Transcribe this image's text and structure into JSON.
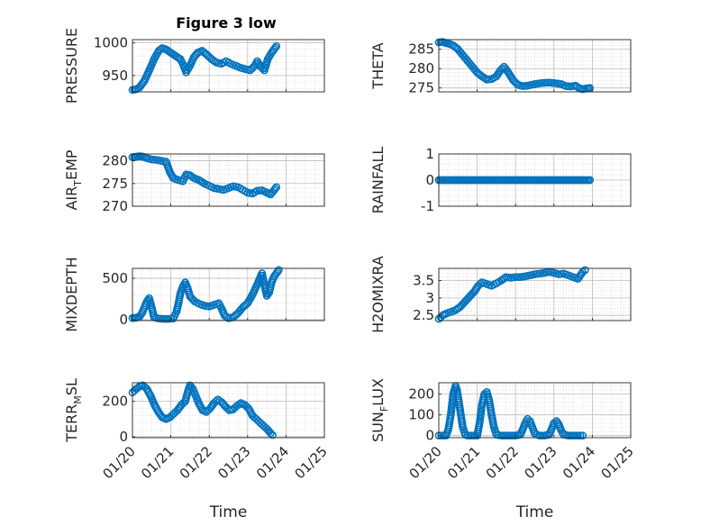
{
  "figure_title": "Figure 3 low",
  "colors": {
    "marker": "#0072BD",
    "axes": "#262626",
    "grid": "#bdbdbd"
  },
  "chart_data": [
    {
      "type": "scatter",
      "ylabel": "PRESSURE",
      "ylabel_parts": [
        "PRESSURE"
      ],
      "xlim": [
        0,
        4
      ],
      "ylim": [
        925,
        1005
      ],
      "yticks": [
        950,
        1000
      ],
      "x_tick_labels_visible": false,
      "grid": true,
      "points": [
        [
          0,
          928
        ],
        [
          0.08,
          929
        ],
        [
          0.15,
          932
        ],
        [
          0.25,
          942
        ],
        [
          0.35,
          958
        ],
        [
          0.45,
          975
        ],
        [
          0.55,
          988
        ],
        [
          0.62,
          992
        ],
        [
          0.7,
          990
        ],
        [
          0.8,
          985
        ],
        [
          0.9,
          980
        ],
        [
          1.0,
          975
        ],
        [
          1.05,
          968
        ],
        [
          1.12,
          955
        ],
        [
          1.2,
          965
        ],
        [
          1.28,
          978
        ],
        [
          1.36,
          985
        ],
        [
          1.45,
          988
        ],
        [
          1.55,
          982
        ],
        [
          1.65,
          975
        ],
        [
          1.75,
          970
        ],
        [
          1.85,
          968
        ],
        [
          1.95,
          972
        ],
        [
          2.05,
          968
        ],
        [
          2.15,
          965
        ],
        [
          2.25,
          962
        ],
        [
          2.35,
          960
        ],
        [
          2.45,
          958
        ],
        [
          2.55,
          965
        ],
        [
          2.6,
          972
        ],
        [
          2.68,
          963
        ],
        [
          2.75,
          958
        ],
        [
          2.82,
          975
        ],
        [
          2.9,
          985
        ],
        [
          2.95,
          990
        ],
        [
          3.0,
          995
        ]
      ]
    },
    {
      "type": "scatter",
      "ylabel": "THETA",
      "ylabel_parts": [
        "THETA"
      ],
      "xlim": [
        0,
        4
      ],
      "ylim": [
        274,
        287.5
      ],
      "yticks": [
        275,
        280,
        285
      ],
      "x_tick_labels_visible": false,
      "grid": true,
      "points": [
        [
          0,
          286.8
        ],
        [
          0.08,
          286.9
        ],
        [
          0.15,
          286.6
        ],
        [
          0.22,
          286.4
        ],
        [
          0.3,
          286
        ],
        [
          0.4,
          285
        ],
        [
          0.5,
          283.5
        ],
        [
          0.6,
          282
        ],
        [
          0.7,
          280.5
        ],
        [
          0.8,
          279
        ],
        [
          0.9,
          278
        ],
        [
          1.0,
          277.2
        ],
        [
          1.1,
          277.3
        ],
        [
          1.2,
          278
        ],
        [
          1.28,
          279.5
        ],
        [
          1.36,
          280.5
        ],
        [
          1.45,
          279
        ],
        [
          1.55,
          277
        ],
        [
          1.65,
          275.8
        ],
        [
          1.75,
          275.5
        ],
        [
          1.85,
          275.6
        ],
        [
          2.0,
          276
        ],
        [
          2.15,
          276.3
        ],
        [
          2.3,
          276.4
        ],
        [
          2.45,
          276.2
        ],
        [
          2.55,
          276
        ],
        [
          2.65,
          275.5
        ],
        [
          2.75,
          275.4
        ],
        [
          2.85,
          275.6
        ],
        [
          2.92,
          275
        ],
        [
          3.0,
          274.7
        ],
        [
          3.08,
          274.9
        ],
        [
          3.15,
          275
        ]
      ]
    },
    {
      "type": "scatter",
      "ylabel": "AIR_TEMP",
      "ylabel_parts": [
        "AIR",
        "T",
        "EMP"
      ],
      "xlim": [
        0,
        4
      ],
      "ylim": [
        270,
        281.5
      ],
      "yticks": [
        270,
        275,
        280
      ],
      "x_tick_labels_visible": false,
      "grid": true,
      "points": [
        [
          0,
          280.8
        ],
        [
          0.08,
          280.9
        ],
        [
          0.15,
          281
        ],
        [
          0.22,
          280.9
        ],
        [
          0.3,
          280.6
        ],
        [
          0.4,
          280.3
        ],
        [
          0.5,
          280.2
        ],
        [
          0.6,
          280
        ],
        [
          0.7,
          279.8
        ],
        [
          0.78,
          277.5
        ],
        [
          0.85,
          276.2
        ],
        [
          0.95,
          275.8
        ],
        [
          1.05,
          275.5
        ],
        [
          1.12,
          277
        ],
        [
          1.2,
          276.8
        ],
        [
          1.28,
          276.2
        ],
        [
          1.38,
          275.8
        ],
        [
          1.5,
          275
        ],
        [
          1.6,
          274.5
        ],
        [
          1.7,
          274
        ],
        [
          1.8,
          273.8
        ],
        [
          1.9,
          273.6
        ],
        [
          2.0,
          274
        ],
        [
          2.1,
          274.4
        ],
        [
          2.2,
          274.2
        ],
        [
          2.3,
          273.6
        ],
        [
          2.4,
          273
        ],
        [
          2.5,
          272.8
        ],
        [
          2.6,
          273.4
        ],
        [
          2.7,
          273.5
        ],
        [
          2.8,
          273
        ],
        [
          2.88,
          272.6
        ],
        [
          2.95,
          273.5
        ],
        [
          3.0,
          274.2
        ]
      ]
    },
    {
      "type": "scatter",
      "ylabel": "RAINFALL",
      "ylabel_parts": [
        "RAINFALL"
      ],
      "xlim": [
        0,
        4
      ],
      "ylim": [
        -1,
        1
      ],
      "yticks": [
        -1,
        0,
        1
      ],
      "x_tick_labels_visible": false,
      "grid": true,
      "points": [
        [
          0,
          0
        ],
        [
          3.15,
          0
        ]
      ],
      "constant_series": {
        "x_start": 0,
        "x_end": 3.15,
        "y": 0
      }
    },
    {
      "type": "scatter",
      "ylabel": "MIXDEPTH",
      "ylabel_parts": [
        "MIXDEPTH"
      ],
      "xlim": [
        0,
        4
      ],
      "ylim": [
        -10,
        620
      ],
      "yticks": [
        0,
        500
      ],
      "x_tick_labels_visible": false,
      "grid": true,
      "points": [
        [
          0,
          20
        ],
        [
          0.08,
          25
        ],
        [
          0.15,
          40
        ],
        [
          0.2,
          80
        ],
        [
          0.25,
          150
        ],
        [
          0.3,
          220
        ],
        [
          0.35,
          260
        ],
        [
          0.4,
          150
        ],
        [
          0.45,
          30
        ],
        [
          0.55,
          15
        ],
        [
          0.65,
          10
        ],
        [
          0.75,
          10
        ],
        [
          0.85,
          15
        ],
        [
          0.92,
          100
        ],
        [
          0.96,
          200
        ],
        [
          1.0,
          320
        ],
        [
          1.05,
          400
        ],
        [
          1.1,
          450
        ],
        [
          1.15,
          380
        ],
        [
          1.2,
          280
        ],
        [
          1.3,
          220
        ],
        [
          1.4,
          190
        ],
        [
          1.5,
          170
        ],
        [
          1.6,
          160
        ],
        [
          1.7,
          180
        ],
        [
          1.8,
          200
        ],
        [
          1.87,
          120
        ],
        [
          1.92,
          50
        ],
        [
          2.0,
          20
        ],
        [
          2.1,
          30
        ],
        [
          2.2,
          80
        ],
        [
          2.3,
          150
        ],
        [
          2.4,
          200
        ],
        [
          2.5,
          300
        ],
        [
          2.58,
          400
        ],
        [
          2.64,
          480
        ],
        [
          2.7,
          560
        ],
        [
          2.75,
          420
        ],
        [
          2.8,
          290
        ],
        [
          2.85,
          330
        ],
        [
          2.9,
          450
        ],
        [
          2.95,
          520
        ],
        [
          3.0,
          560
        ],
        [
          3.05,
          600
        ]
      ]
    },
    {
      "type": "scatter",
      "ylabel": "H2OMIXRA",
      "ylabel_parts": [
        "H2OMIXRA"
      ],
      "xlim": [
        0,
        4
      ],
      "ylim": [
        2.35,
        3.85
      ],
      "yticks": [
        2.5,
        3,
        3.5
      ],
      "x_tick_labels_visible": false,
      "grid": true,
      "points": [
        [
          0,
          2.4
        ],
        [
          0.08,
          2.5
        ],
        [
          0.15,
          2.55
        ],
        [
          0.25,
          2.6
        ],
        [
          0.35,
          2.65
        ],
        [
          0.45,
          2.75
        ],
        [
          0.55,
          2.9
        ],
        [
          0.65,
          3.05
        ],
        [
          0.75,
          3.2
        ],
        [
          0.82,
          3.35
        ],
        [
          0.9,
          3.45
        ],
        [
          1.0,
          3.4
        ],
        [
          1.1,
          3.35
        ],
        [
          1.2,
          3.42
        ],
        [
          1.3,
          3.5
        ],
        [
          1.4,
          3.6
        ],
        [
          1.5,
          3.58
        ],
        [
          1.6,
          3.6
        ],
        [
          1.7,
          3.6
        ],
        [
          1.8,
          3.62
        ],
        [
          1.9,
          3.65
        ],
        [
          2.0,
          3.68
        ],
        [
          2.1,
          3.7
        ],
        [
          2.2,
          3.72
        ],
        [
          2.3,
          3.75
        ],
        [
          2.4,
          3.72
        ],
        [
          2.5,
          3.68
        ],
        [
          2.6,
          3.7
        ],
        [
          2.7,
          3.65
        ],
        [
          2.8,
          3.6
        ],
        [
          2.9,
          3.55
        ],
        [
          2.95,
          3.65
        ],
        [
          3.0,
          3.75
        ],
        [
          3.05,
          3.8
        ]
      ]
    },
    {
      "type": "scatter",
      "ylabel": "TERR_MSL",
      "ylabel_parts": [
        "TERR",
        "M",
        "SL"
      ],
      "xlim": [
        0,
        4
      ],
      "ylim": [
        -5,
        305
      ],
      "yticks": [
        0,
        200
      ],
      "x_tick_labels": [
        "01/20",
        "01/21",
        "01/22",
        "01/23",
        "01/24",
        "01/25"
      ],
      "x_tick_values": [
        0,
        0.8,
        1.6,
        2.4,
        3.2,
        4.0
      ],
      "x_tick_labels_visible": true,
      "xlabel": "Time",
      "grid": true,
      "points": [
        [
          0,
          250
        ],
        [
          0.08,
          270
        ],
        [
          0.15,
          285
        ],
        [
          0.22,
          290
        ],
        [
          0.3,
          270
        ],
        [
          0.38,
          230
        ],
        [
          0.46,
          180
        ],
        [
          0.54,
          140
        ],
        [
          0.62,
          110
        ],
        [
          0.7,
          100
        ],
        [
          0.78,
          110
        ],
        [
          0.86,
          130
        ],
        [
          0.94,
          150
        ],
        [
          1.02,
          180
        ],
        [
          1.1,
          200
        ],
        [
          1.16,
          260
        ],
        [
          1.2,
          290
        ],
        [
          1.26,
          270
        ],
        [
          1.32,
          230
        ],
        [
          1.38,
          190
        ],
        [
          1.46,
          150
        ],
        [
          1.54,
          140
        ],
        [
          1.62,
          160
        ],
        [
          1.7,
          190
        ],
        [
          1.78,
          210
        ],
        [
          1.86,
          195
        ],
        [
          1.94,
          170
        ],
        [
          2.02,
          150
        ],
        [
          2.1,
          155
        ],
        [
          2.18,
          175
        ],
        [
          2.26,
          190
        ],
        [
          2.34,
          180
        ],
        [
          2.42,
          160
        ],
        [
          2.5,
          120
        ],
        [
          2.58,
          100
        ],
        [
          2.66,
          80
        ],
        [
          2.74,
          60
        ],
        [
          2.82,
          40
        ],
        [
          2.88,
          20
        ],
        [
          2.92,
          10
        ]
      ]
    },
    {
      "type": "scatter",
      "ylabel": "SUN_FLUX",
      "ylabel_parts": [
        "SUN",
        "F",
        "LUX"
      ],
      "xlim": [
        0,
        4
      ],
      "ylim": [
        -10,
        255
      ],
      "yticks": [
        0,
        100,
        200
      ],
      "x_tick_labels": [
        "01/20",
        "01/21",
        "01/22",
        "01/23",
        "01/24",
        "01/25"
      ],
      "x_tick_values": [
        0,
        0.8,
        1.6,
        2.4,
        3.2,
        4.0
      ],
      "x_tick_labels_visible": true,
      "xlabel": "Time",
      "grid": true,
      "points": [
        [
          0,
          0
        ],
        [
          0.05,
          0
        ],
        [
          0.1,
          0
        ],
        [
          0.15,
          0
        ],
        [
          0.2,
          30
        ],
        [
          0.25,
          100
        ],
        [
          0.3,
          200
        ],
        [
          0.35,
          240
        ],
        [
          0.38,
          220
        ],
        [
          0.42,
          160
        ],
        [
          0.46,
          100
        ],
        [
          0.5,
          40
        ],
        [
          0.55,
          5
        ],
        [
          0.6,
          0
        ],
        [
          0.7,
          0
        ],
        [
          0.8,
          0
        ],
        [
          0.85,
          60
        ],
        [
          0.9,
          150
        ],
        [
          0.95,
          200
        ],
        [
          1.0,
          210
        ],
        [
          1.05,
          170
        ],
        [
          1.1,
          100
        ],
        [
          1.15,
          40
        ],
        [
          1.2,
          5
        ],
        [
          1.3,
          0
        ],
        [
          1.4,
          0
        ],
        [
          1.5,
          0
        ],
        [
          1.6,
          0
        ],
        [
          1.7,
          5
        ],
        [
          1.75,
          30
        ],
        [
          1.8,
          60
        ],
        [
          1.85,
          80
        ],
        [
          1.9,
          70
        ],
        [
          1.95,
          40
        ],
        [
          2.0,
          10
        ],
        [
          2.1,
          0
        ],
        [
          2.2,
          0
        ],
        [
          2.3,
          5
        ],
        [
          2.35,
          30
        ],
        [
          2.4,
          60
        ],
        [
          2.45,
          70
        ],
        [
          2.5,
          55
        ],
        [
          2.55,
          25
        ],
        [
          2.6,
          5
        ],
        [
          2.7,
          0
        ],
        [
          2.8,
          0
        ],
        [
          2.9,
          0
        ],
        [
          3.0,
          0
        ]
      ]
    }
  ]
}
